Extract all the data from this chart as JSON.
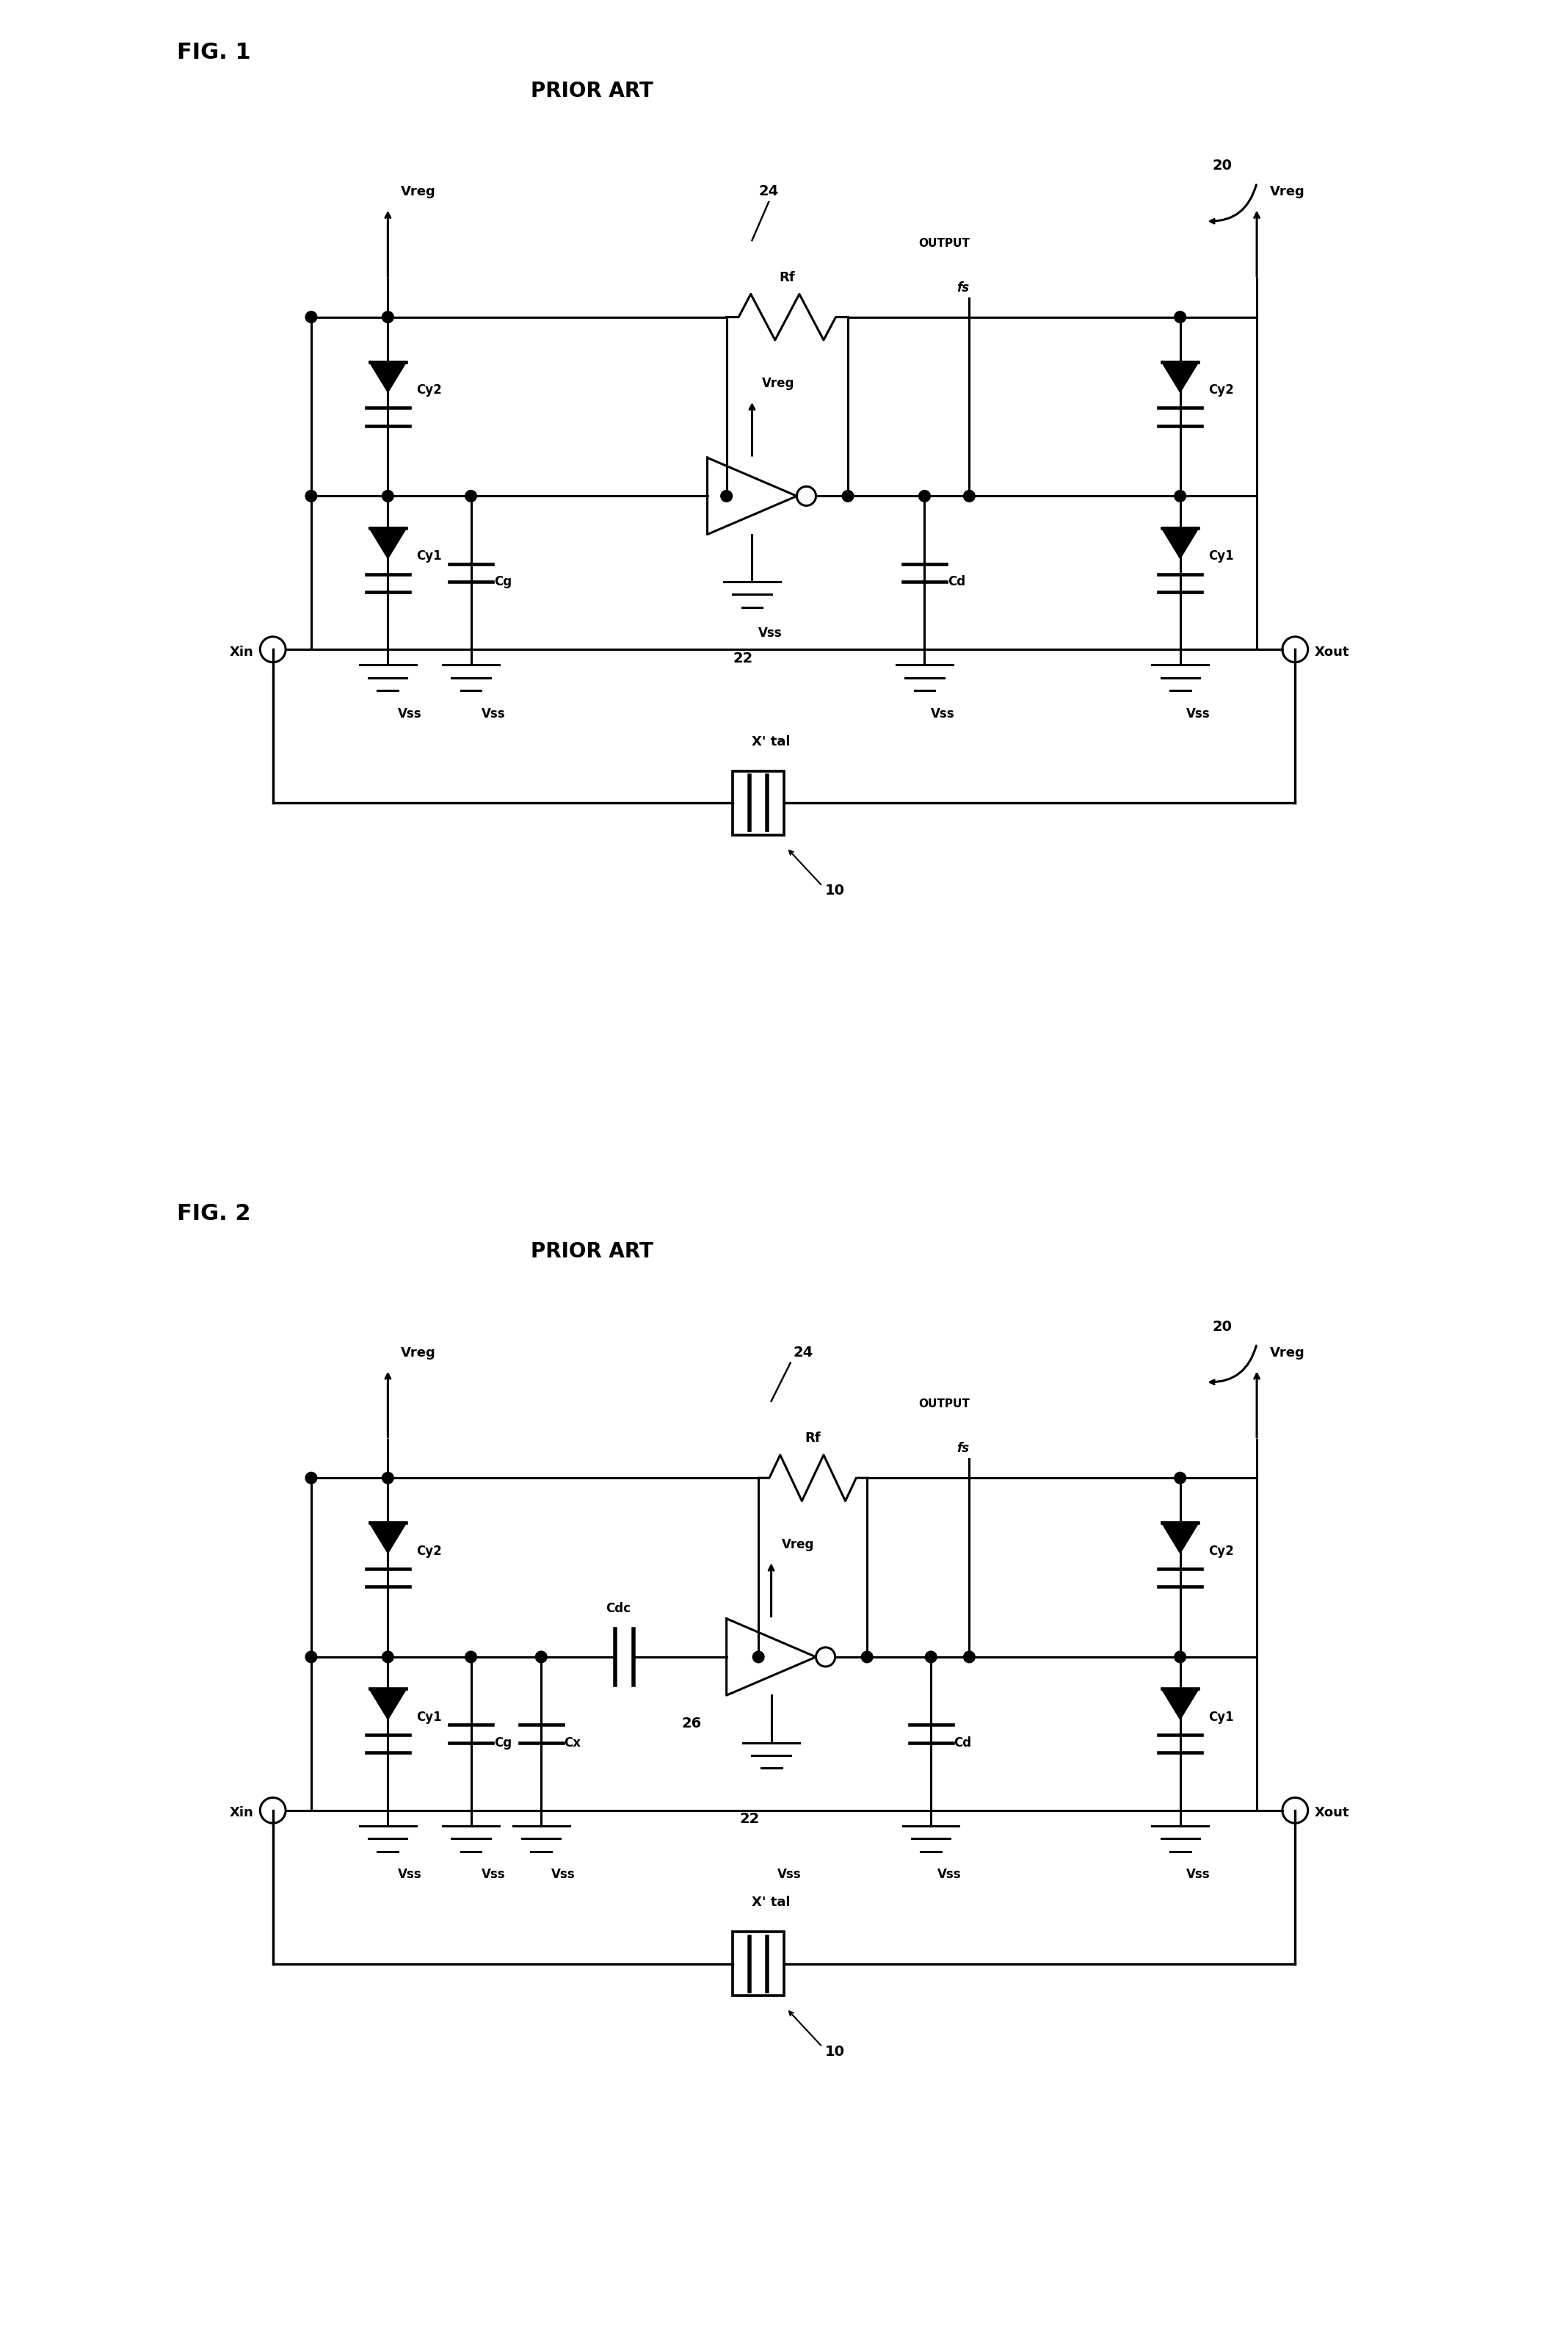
{
  "fig1_title": "FIG. 1",
  "fig2_title": "FIG. 2",
  "prior_art": "PRIOR ART",
  "bg_color": "#ffffff",
  "lc": "#000000",
  "lw": 2.2,
  "fs": 13,
  "fs_fig": 22,
  "fs_num": 14
}
